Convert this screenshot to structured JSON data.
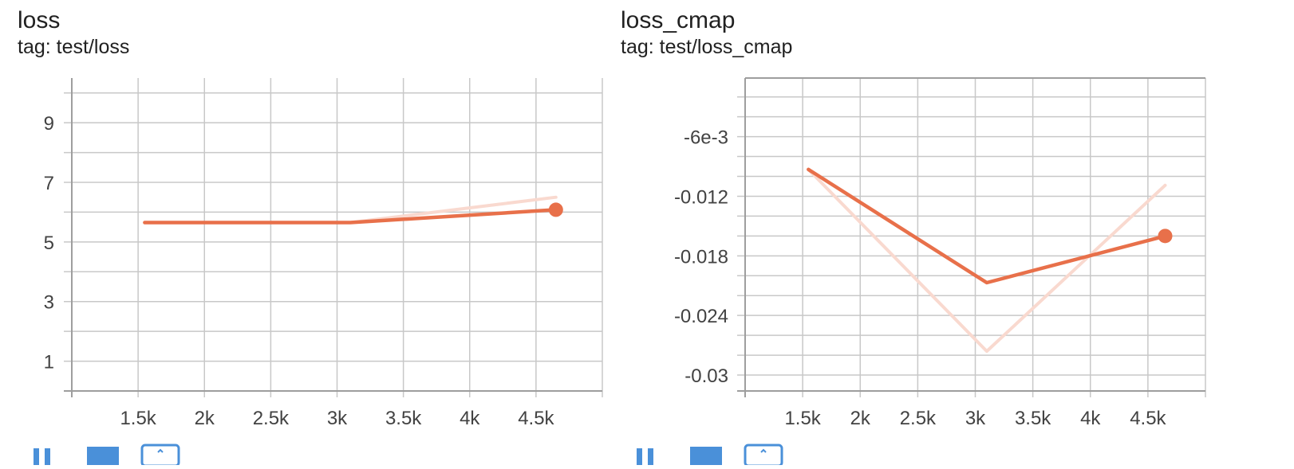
{
  "colors": {
    "smoothed": "#e8704a",
    "raw": "#f9d9cf",
    "grid": "#c8c8c8",
    "axis": "#9e9e9e",
    "toolbar": "#4a90d9"
  },
  "icons": [
    "expand-icon",
    "data-table-icon",
    "fit-domain-icon"
  ],
  "cards": [
    {
      "title": "loss",
      "tag": "tag: test/loss",
      "chart_data": {
        "type": "line",
        "title": "loss",
        "xlim": [
          1000,
          5000
        ],
        "ylim": [
          0,
          10.5
        ],
        "x_ticks": [
          1500,
          2000,
          2500,
          3000,
          3500,
          4000,
          4500
        ],
        "x_tick_labels": [
          "1.5k",
          "2k",
          "2.5k",
          "3k",
          "3.5k",
          "4k",
          "4.5k"
        ],
        "y_ticks": [
          1,
          3,
          5,
          7,
          9
        ],
        "y_tick_labels": [
          "1",
          "3",
          "5",
          "7",
          "9"
        ],
        "y_minor_ticks": [
          0,
          2,
          4,
          6,
          8,
          10
        ],
        "grid": true,
        "series": [
          {
            "role": "raw",
            "x": [
              1550,
              3100,
              4650
            ],
            "y": [
              5.65,
              5.65,
              6.5
            ]
          },
          {
            "role": "smoothed",
            "x": [
              1550,
              3100,
              4650
            ],
            "y": [
              5.65,
              5.65,
              6.08
            ]
          }
        ]
      }
    },
    {
      "title": "loss_cmap",
      "tag": "tag: test/loss_cmap",
      "chart_data": {
        "type": "line",
        "title": "loss_cmap",
        "xlim": [
          1000,
          5000
        ],
        "ylim": [
          -0.0316,
          -0.0001
        ],
        "x_ticks": [
          1500,
          2000,
          2500,
          3000,
          3500,
          4000,
          4500
        ],
        "x_tick_labels": [
          "1.5k",
          "2k",
          "2.5k",
          "3k",
          "3.5k",
          "4k",
          "4.5k"
        ],
        "y_ticks": [
          -0.006,
          -0.012,
          -0.018,
          -0.024,
          -0.03
        ],
        "y_tick_labels": [
          "-6e-3",
          "-0.012",
          "-0.018",
          "-0.024",
          "-0.03"
        ],
        "y_minor_ticks": [
          -0.002,
          -0.004,
          -0.008,
          -0.01,
          -0.014,
          -0.016,
          -0.02,
          -0.022,
          -0.026,
          -0.028
        ],
        "grid": true,
        "series": [
          {
            "role": "raw",
            "x": [
              1550,
              3100,
              4650
            ],
            "y": [
              -0.0093,
              -0.0276,
              -0.0109
            ]
          },
          {
            "role": "smoothed",
            "x": [
              1550,
              3100,
              4650
            ],
            "y": [
              -0.0093,
              -0.0207,
              -0.016
            ]
          }
        ]
      }
    }
  ]
}
